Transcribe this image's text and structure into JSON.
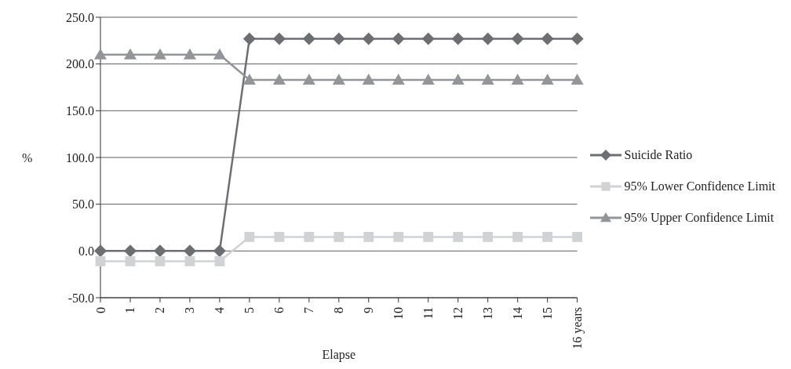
{
  "chart_data": {
    "type": "line",
    "xlabel": "Elapse",
    "ylabel": "%",
    "categories": [
      "0",
      "1",
      "2",
      "3",
      "4",
      "5",
      "6",
      "7",
      "8",
      "9",
      "10",
      "11",
      "12",
      "13",
      "14",
      "15",
      "16 years"
    ],
    "series": [
      {
        "name": "Suicide Ratio",
        "color": "#6d6e71",
        "marker": "diamond",
        "values": [
          0,
          0,
          0,
          0,
          0,
          227,
          227,
          227,
          227,
          227,
          227,
          227,
          227,
          227,
          227,
          227,
          227
        ]
      },
      {
        "name": "95% Lower Confidence Limit",
        "color": "#d1d2d4",
        "marker": "square",
        "values": [
          -11,
          -11,
          -11,
          -11,
          -11,
          15,
          15,
          15,
          15,
          15,
          15,
          15,
          15,
          15,
          15,
          15,
          15
        ]
      },
      {
        "name": "95% Upper Confidence Limit",
        "color": "#939598",
        "marker": "triangle",
        "values": [
          210,
          210,
          210,
          210,
          210,
          183,
          183,
          183,
          183,
          183,
          183,
          183,
          183,
          183,
          183,
          183,
          183
        ]
      }
    ],
    "ylim": [
      -50,
      250
    ],
    "yticks": [
      {
        "value": -50,
        "label": "-50.0"
      },
      {
        "value": 0,
        "label": "0.0"
      },
      {
        "value": 50,
        "label": "50.0"
      },
      {
        "value": 100,
        "label": "100.0"
      },
      {
        "value": 150,
        "label": "150.0"
      },
      {
        "value": 200,
        "label": "200.0"
      },
      {
        "value": 250,
        "label": "250.0"
      }
    ],
    "grid": "y",
    "legend": "right",
    "line_style": "solid"
  }
}
